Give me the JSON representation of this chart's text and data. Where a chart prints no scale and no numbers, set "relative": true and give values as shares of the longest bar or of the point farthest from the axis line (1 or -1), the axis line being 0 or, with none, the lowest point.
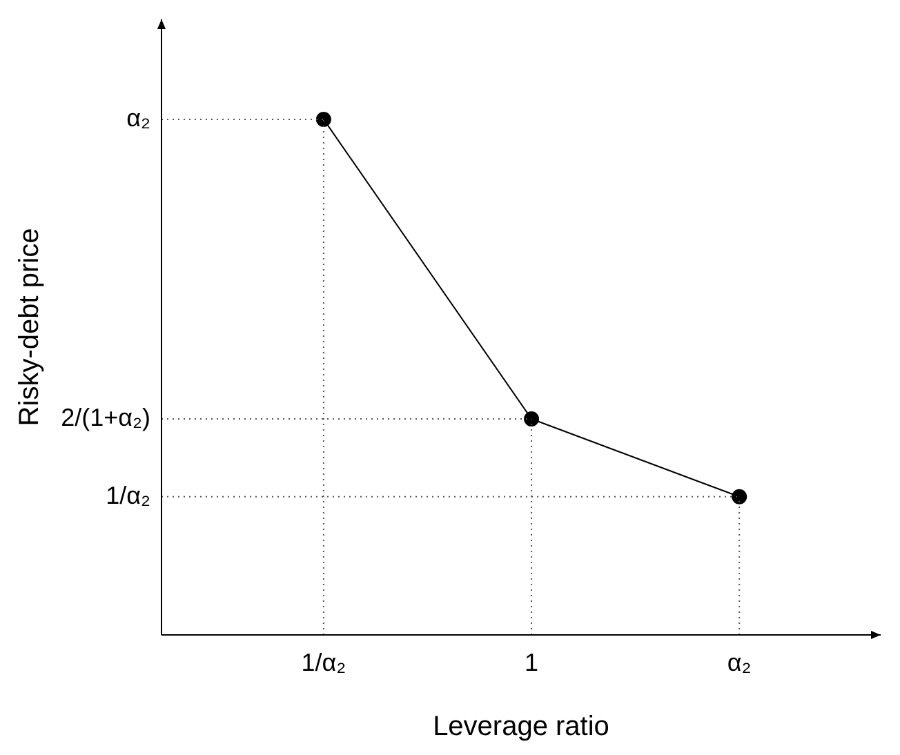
{
  "chart_data": {
    "type": "line",
    "xlabel": "Leverage ratio",
    "ylabel": "Risky-debt price",
    "categories": [
      "1/α₂",
      "1",
      "α₂"
    ],
    "relative": true,
    "marker": "circle",
    "line_style": "solid",
    "legend": false,
    "series": [
      {
        "color": "#000000",
        "values": [
          1,
          0.419,
          0.268
        ]
      }
    ],
    "ref_lines": [
      {
        "axis": "y",
        "value": 1,
        "label": "α₂",
        "line_style": "dotted"
      },
      {
        "axis": "y",
        "value": 0.419,
        "label": "2/(1+α₂)",
        "line_style": "dotted"
      },
      {
        "axis": "y",
        "value": 0.268,
        "label": "1/α₂",
        "line_style": "dotted"
      },
      {
        "axis": "x",
        "value": "1/α₂",
        "line_style": "dotted"
      },
      {
        "axis": "x",
        "value": "1",
        "line_style": "dotted"
      },
      {
        "axis": "x",
        "value": "α₂",
        "line_style": "dotted"
      }
    ]
  }
}
